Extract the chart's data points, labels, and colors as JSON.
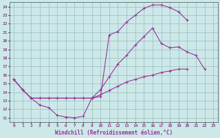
{
  "background_color": "#cce8e8",
  "grid_color": "#99bbbb",
  "line_color": "#993399",
  "xlabel": "Windchill (Refroidissement éolien,°C)",
  "xlim": [
    -0.5,
    23.5
  ],
  "ylim": [
    10.5,
    24.5
  ],
  "yticks": [
    11,
    12,
    13,
    14,
    15,
    16,
    17,
    18,
    19,
    20,
    21,
    22,
    23,
    24
  ],
  "xticks": [
    0,
    1,
    2,
    3,
    4,
    5,
    6,
    7,
    8,
    9,
    10,
    11,
    12,
    13,
    14,
    15,
    16,
    17,
    18,
    19,
    20,
    21,
    22,
    23
  ],
  "s1x": [
    0,
    1,
    2,
    3,
    4,
    5,
    6,
    7,
    8,
    9,
    10,
    11,
    12,
    13,
    14,
    15,
    16,
    17,
    18,
    19,
    20
  ],
  "s1y": [
    15.5,
    14.3,
    13.3,
    12.5,
    12.2,
    11.3,
    11.1,
    11.0,
    11.2,
    13.3,
    13.5,
    20.7,
    21.1,
    22.2,
    23.0,
    23.8,
    24.2,
    24.2,
    23.9,
    23.4,
    22.4
  ],
  "s2x": [
    0,
    1,
    2,
    3,
    4,
    5,
    6,
    7,
    8,
    9,
    10,
    11,
    12,
    13,
    14,
    15,
    16,
    17,
    18,
    19,
    20,
    21,
    22,
    23
  ],
  "s2y": [
    15.5,
    14.3,
    13.3,
    13.3,
    13.3,
    13.3,
    13.3,
    13.3,
    13.3,
    13.3,
    14.3,
    15.8,
    17.3,
    18.3,
    19.5,
    20.5,
    21.5,
    19.7,
    19.2,
    19.3,
    18.7,
    18.3,
    16.7,
    null
  ],
  "s3x": [
    0,
    1,
    2,
    3,
    4,
    5,
    6,
    7,
    8,
    9,
    10,
    11,
    12,
    13,
    14,
    15,
    16,
    17,
    18,
    19,
    20,
    21,
    22,
    23
  ],
  "s3y": [
    15.5,
    14.3,
    13.3,
    13.3,
    13.3,
    13.3,
    13.3,
    13.3,
    13.3,
    13.3,
    13.7,
    14.2,
    14.7,
    15.2,
    15.5,
    15.8,
    16.0,
    16.3,
    16.5,
    16.7,
    16.7,
    null,
    null,
    null
  ]
}
